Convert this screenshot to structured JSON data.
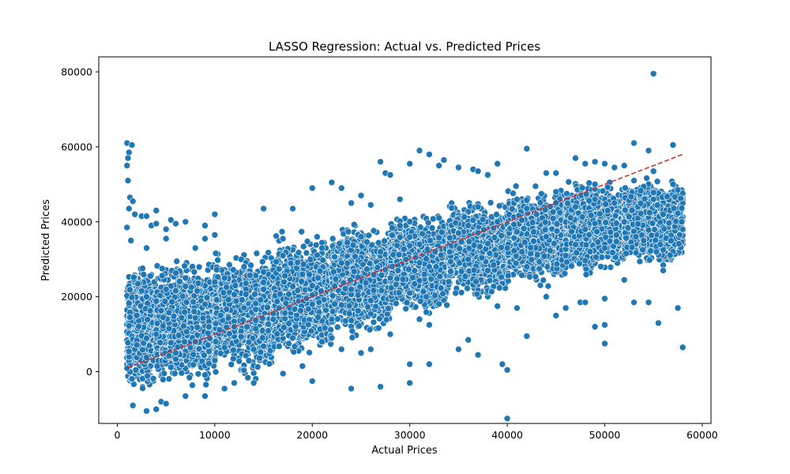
{
  "chart_data": {
    "type": "scatter",
    "title": "LASSO Regression: Actual vs. Predicted Prices",
    "xlabel": "Actual Prices",
    "ylabel": "Predicted Prices",
    "xlim": [
      -1900,
      60900
    ],
    "ylim": [
      -13800,
      84000
    ],
    "x_ticks": [
      0,
      10000,
      20000,
      30000,
      40000,
      50000,
      60000
    ],
    "x_tick_labels": [
      "0",
      "10000",
      "20000",
      "30000",
      "40000",
      "50000",
      "60000"
    ],
    "y_ticks": [
      0,
      20000,
      40000,
      60000,
      80000
    ],
    "y_tick_labels": [
      "0",
      "20000",
      "40000",
      "60000",
      "80000"
    ],
    "grid": false,
    "point_color": "#1f77b4",
    "reference_line": {
      "color": "#d62728",
      "style": "dashed",
      "from": [
        1000,
        1000
      ],
      "to": [
        58000,
        58000
      ]
    },
    "series": [
      {
        "points": [
          [
            1000,
            61000
          ],
          [
            1500,
            60500
          ],
          [
            1200,
            58500
          ],
          [
            1100,
            57000
          ],
          [
            1000,
            55000
          ],
          [
            1100,
            51000
          ],
          [
            1300,
            46500
          ],
          [
            1600,
            45500
          ],
          [
            1800,
            42000
          ],
          [
            1200,
            43500
          ],
          [
            2500,
            41500
          ],
          [
            3000,
            41500
          ],
          [
            3500,
            39000
          ],
          [
            4000,
            43000
          ],
          [
            4000,
            39500
          ],
          [
            5000,
            38000
          ],
          [
            5500,
            40500
          ],
          [
            6000,
            39500
          ],
          [
            7000,
            40000
          ],
          [
            9000,
            39000
          ],
          [
            10000,
            42000
          ],
          [
            10000,
            36500
          ],
          [
            1000,
            38500
          ],
          [
            1400,
            35000
          ],
          [
            3000,
            33000
          ],
          [
            5000,
            35500
          ],
          [
            8000,
            33000
          ],
          [
            9000,
            35500
          ],
          [
            15000,
            43500
          ],
          [
            18000,
            43500
          ],
          [
            20000,
            49000
          ],
          [
            22000,
            50500
          ],
          [
            23000,
            49000
          ],
          [
            24000,
            45000
          ],
          [
            25000,
            47000
          ],
          [
            26000,
            44500
          ],
          [
            27000,
            56000
          ],
          [
            27500,
            53000
          ],
          [
            28000,
            52500
          ],
          [
            29000,
            46000
          ],
          [
            30000,
            55500
          ],
          [
            31000,
            59000
          ],
          [
            32000,
            58000
          ],
          [
            33000,
            55000
          ],
          [
            33500,
            56500
          ],
          [
            35000,
            54500
          ],
          [
            36500,
            54000
          ],
          [
            37000,
            53500
          ],
          [
            38000,
            52500
          ],
          [
            39000,
            55500
          ],
          [
            42000,
            59500
          ],
          [
            44000,
            53000
          ],
          [
            45000,
            53000
          ],
          [
            47000,
            57000
          ],
          [
            48000,
            55500
          ],
          [
            49000,
            56000
          ],
          [
            50000,
            55500
          ],
          [
            51000,
            54500
          ],
          [
            52000,
            55000
          ],
          [
            53000,
            61000
          ],
          [
            54500,
            59000
          ],
          [
            55000,
            53500
          ],
          [
            57000,
            60500
          ],
          [
            55000,
            79500
          ],
          [
            55500,
            13000
          ],
          [
            57500,
            17000
          ],
          [
            58000,
            6500
          ],
          [
            50000,
            12500
          ],
          [
            50000,
            7500
          ],
          [
            49000,
            12000
          ],
          [
            47500,
            18500
          ],
          [
            45000,
            15000
          ],
          [
            42000,
            9500
          ],
          [
            39500,
            2000
          ],
          [
            40000,
            500
          ],
          [
            40000,
            -12500
          ],
          [
            37000,
            4500
          ],
          [
            35000,
            6000
          ],
          [
            36000,
            8500
          ],
          [
            30000,
            2000
          ],
          [
            32000,
            2000
          ],
          [
            30000,
            -3000
          ],
          [
            27000,
            -4000
          ],
          [
            24000,
            -4500
          ],
          [
            20000,
            -2500
          ],
          [
            1600,
            -9000
          ],
          [
            3000,
            -10500
          ],
          [
            4000,
            -10000
          ],
          [
            4500,
            -8000
          ],
          [
            5000,
            -8500
          ],
          [
            7000,
            -6500
          ],
          [
            9000,
            -6500
          ],
          [
            11000,
            -4500
          ],
          [
            12000,
            -3000
          ],
          [
            14000,
            -3000
          ],
          [
            17000,
            -500
          ],
          [
            19000,
            1500
          ],
          [
            53000,
            18500
          ],
          [
            54500,
            18500
          ],
          [
            52000,
            24500
          ],
          [
            56000,
            27000
          ],
          [
            50000,
            19500
          ],
          [
            48000,
            18500
          ],
          [
            46000,
            17000
          ],
          [
            44000,
            20000
          ],
          [
            41000,
            17000
          ],
          [
            39000,
            17500
          ],
          [
            32000,
            12500
          ],
          [
            31000,
            14000
          ],
          [
            28000,
            10000
          ],
          [
            26000,
            6000
          ],
          [
            25000,
            5000
          ],
          [
            23000,
            6000
          ],
          [
            22000,
            9000
          ],
          [
            21000,
            8000
          ],
          [
            2000,
            15000
          ],
          [
            3000,
            20000
          ],
          [
            4000,
            10000
          ],
          [
            5000,
            22000
          ],
          [
            6000,
            5000
          ],
          [
            7000,
            25000
          ],
          [
            8000,
            8000
          ],
          [
            9000,
            18000
          ],
          [
            10000,
            3000
          ],
          [
            11000,
            25000
          ],
          [
            12000,
            12000
          ],
          [
            13000,
            28000
          ],
          [
            14000,
            6000
          ],
          [
            15000,
            22000
          ],
          [
            16000,
            14000
          ],
          [
            17000,
            31000
          ],
          [
            18000,
            9000
          ],
          [
            19000,
            26000
          ],
          [
            20000,
            18000
          ],
          [
            21000,
            33000
          ],
          [
            22000,
            14000
          ],
          [
            23000,
            29000
          ],
          [
            24000,
            22000
          ],
          [
            25000,
            36000
          ],
          [
            26000,
            19000
          ],
          [
            27000,
            32000
          ],
          [
            28000,
            25000
          ],
          [
            29000,
            39000
          ],
          [
            30000,
            21000
          ],
          [
            31000,
            34000
          ],
          [
            32000,
            28000
          ],
          [
            33000,
            41000
          ],
          [
            34000,
            24000
          ],
          [
            35000,
            37000
          ],
          [
            36000,
            30000
          ],
          [
            37000,
            44000
          ],
          [
            38000,
            27000
          ],
          [
            39000,
            40000
          ],
          [
            40000,
            33000
          ],
          [
            41000,
            46000
          ],
          [
            42000,
            28000
          ],
          [
            43000,
            42000
          ],
          [
            44000,
            36000
          ],
          [
            45000,
            48000
          ],
          [
            46000,
            31000
          ],
          [
            47000,
            44000
          ],
          [
            48000,
            38000
          ],
          [
            49000,
            50000
          ],
          [
            50000,
            33000
          ],
          [
            51000,
            45000
          ],
          [
            52000,
            40000
          ],
          [
            53000,
            51000
          ],
          [
            54000,
            35000
          ],
          [
            55000,
            46000
          ],
          [
            56000,
            42000
          ],
          [
            57000,
            50000
          ],
          [
            58000,
            38000
          ]
        ],
        "dense_bands": [
          {
            "x": [
              1000,
              4000
            ],
            "y_low": -7000,
            "y_high": 30000,
            "count": 900
          },
          {
            "x": [
              4000,
              10000
            ],
            "y_low": -6000,
            "y_high": 32000,
            "count": 1300
          },
          {
            "x": [
              10000,
              16000
            ],
            "y_low": -3000,
            "y_high": 34000,
            "count": 1200
          },
          {
            "x": [
              16000,
              22000
            ],
            "y_low": 2000,
            "y_high": 38000,
            "count": 1200
          },
          {
            "x": [
              22000,
              28000
            ],
            "y_low": 8000,
            "y_high": 41000,
            "count": 1200
          },
          {
            "x": [
              28000,
              34000
            ],
            "y_low": 14000,
            "y_high": 44000,
            "count": 1200
          },
          {
            "x": [
              34000,
              40000
            ],
            "y_low": 18000,
            "y_high": 47000,
            "count": 1200
          },
          {
            "x": [
              40000,
              46000
            ],
            "y_low": 22000,
            "y_high": 50000,
            "count": 1200
          },
          {
            "x": [
              46000,
              52000
            ],
            "y_low": 25000,
            "y_high": 52000,
            "count": 1200
          },
          {
            "x": [
              52000,
              58000
            ],
            "y_low": 27000,
            "y_high": 53000,
            "count": 1200
          }
        ]
      }
    ]
  }
}
